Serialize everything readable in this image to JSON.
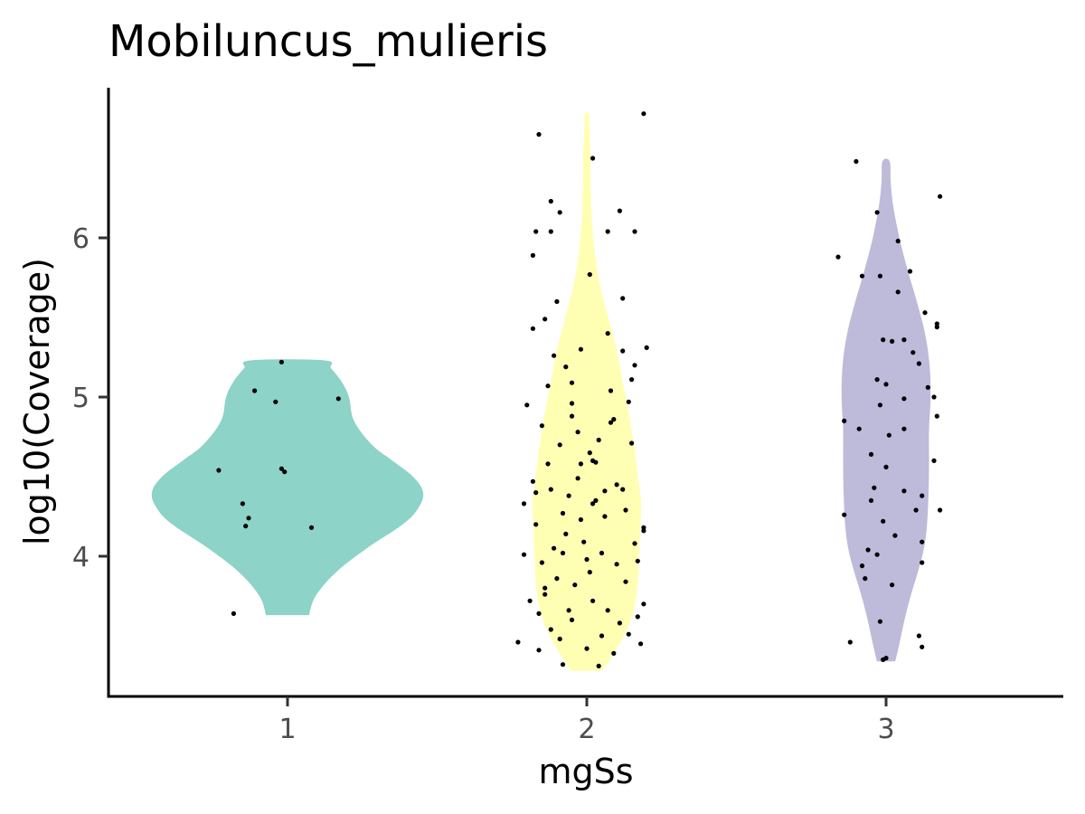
{
  "chart_data": {
    "type": "violin",
    "title": "Mobiluncus_mulieris",
    "xlabel": "mgSs",
    "ylabel": "log10(Coverage)",
    "categories": [
      "1",
      "2",
      "3"
    ],
    "yticks": [
      4,
      5,
      6
    ],
    "ylim": [
      3.1,
      6.9
    ],
    "grid": false,
    "legend": "none",
    "colors": [
      "#8DD3C7",
      "#FFFFB3",
      "#BEBADA"
    ],
    "groups": [
      {
        "category": "1",
        "range": [
          3.63,
          5.23
        ],
        "density": [
          [
            3.63,
            0.42
          ],
          [
            3.75,
            0.55
          ],
          [
            3.9,
            0.95
          ],
          [
            4.05,
            1.55
          ],
          [
            4.2,
            2.25
          ],
          [
            4.3,
            2.55
          ],
          [
            4.4,
            2.65
          ],
          [
            4.5,
            2.45
          ],
          [
            4.6,
            2.05
          ],
          [
            4.7,
            1.65
          ],
          [
            4.85,
            1.3
          ],
          [
            5.0,
            1.2
          ],
          [
            5.1,
            1.05
          ],
          [
            5.18,
            0.85
          ],
          [
            5.23,
            0.72
          ]
        ],
        "points": [
          [
            0.82,
            3.64
          ],
          [
            0.77,
            4.54
          ],
          [
            0.85,
            4.33
          ],
          [
            0.86,
            4.19
          ],
          [
            0.87,
            4.24
          ],
          [
            0.98,
            4.55
          ],
          [
            0.99,
            4.53
          ],
          [
            0.96,
            4.97
          ],
          [
            0.89,
            5.04
          ],
          [
            0.98,
            5.22
          ],
          [
            1.17,
            4.99
          ],
          [
            1.08,
            4.18
          ]
        ]
      },
      {
        "category": "2",
        "range": [
          3.28,
          6.78
        ],
        "density": [
          [
            3.28,
            0.3
          ],
          [
            3.4,
            0.55
          ],
          [
            3.55,
            0.8
          ],
          [
            3.7,
            0.94
          ],
          [
            3.85,
            1.0
          ],
          [
            4.0,
            1.02
          ],
          [
            4.2,
            1.05
          ],
          [
            4.35,
            1.06
          ],
          [
            4.5,
            1.0
          ],
          [
            4.7,
            0.92
          ],
          [
            4.9,
            0.82
          ],
          [
            5.1,
            0.7
          ],
          [
            5.3,
            0.58
          ],
          [
            5.5,
            0.42
          ],
          [
            5.7,
            0.26
          ],
          [
            5.9,
            0.16
          ],
          [
            6.1,
            0.1
          ],
          [
            6.3,
            0.08
          ],
          [
            6.5,
            0.07
          ],
          [
            6.7,
            0.05
          ],
          [
            6.78,
            0.04
          ]
        ],
        "points": [
          [
            1.77,
            3.46
          ],
          [
            1.84,
            3.41
          ],
          [
            1.92,
            3.32
          ],
          [
            1.88,
            3.54
          ],
          [
            1.84,
            3.64
          ],
          [
            1.86,
            3.76
          ],
          [
            1.9,
            3.86
          ],
          [
            1.95,
            3.6
          ],
          [
            2.02,
            3.72
          ],
          [
            2.04,
            3.31
          ],
          [
            2.09,
            3.39
          ],
          [
            2.14,
            3.51
          ],
          [
            2.17,
            3.62
          ],
          [
            2.19,
            3.7
          ],
          [
            2.13,
            3.84
          ],
          [
            2.1,
            3.95
          ],
          [
            2.16,
            4.08
          ],
          [
            2.19,
            4.18
          ],
          [
            2.13,
            4.29
          ],
          [
            2.06,
            4.41
          ],
          [
            2.02,
            4.33
          ],
          [
            1.98,
            4.23
          ],
          [
            1.93,
            4.14
          ],
          [
            1.89,
            4.05
          ],
          [
            1.83,
            4.2
          ],
          [
            1.79,
            4.33
          ],
          [
            1.82,
            4.47
          ],
          [
            1.87,
            4.58
          ],
          [
            1.91,
            4.7
          ],
          [
            1.85,
            4.82
          ],
          [
            1.8,
            4.95
          ],
          [
            1.87,
            5.07
          ],
          [
            1.93,
            5.19
          ],
          [
            1.98,
            5.3
          ],
          [
            2.07,
            5.4
          ],
          [
            2.12,
            5.29
          ],
          [
            2.16,
            5.2
          ],
          [
            2.2,
            5.31
          ],
          [
            2.14,
            4.97
          ],
          [
            2.08,
            4.84
          ],
          [
            2.04,
            4.73
          ],
          [
            2.02,
            4.6
          ],
          [
            1.97,
            4.49
          ],
          [
            1.94,
            4.38
          ],
          [
            1.99,
            4.09
          ],
          [
            2.05,
            4.02
          ],
          [
            2.01,
            3.9
          ],
          [
            1.96,
            3.82
          ],
          [
            1.91,
            3.48
          ],
          [
            2.0,
            3.42
          ],
          [
            2.07,
            3.66
          ],
          [
            2.11,
            3.58
          ],
          [
            2.18,
            3.45
          ],
          [
            1.81,
            3.72
          ],
          [
            1.85,
            3.96
          ],
          [
            1.92,
            4.27
          ],
          [
            2.03,
            4.59
          ],
          [
            2.09,
            4.86
          ],
          [
            2.15,
            5.11
          ],
          [
            1.82,
            5.43
          ],
          [
            1.86,
            5.49
          ],
          [
            1.9,
            5.6
          ],
          [
            2.01,
            5.77
          ],
          [
            2.12,
            5.62
          ],
          [
            1.82,
            5.89
          ],
          [
            1.83,
            6.04
          ],
          [
            1.88,
            6.04
          ],
          [
            2.07,
            6.04
          ],
          [
            2.16,
            6.04
          ],
          [
            1.91,
            6.16
          ],
          [
            2.11,
            6.17
          ],
          [
            1.88,
            6.23
          ],
          [
            2.02,
            6.5
          ],
          [
            1.84,
            6.65
          ],
          [
            2.19,
            6.78
          ],
          [
            1.95,
            4.88
          ],
          [
            1.97,
            4.78
          ],
          [
            2.01,
            4.65
          ],
          [
            1.88,
            4.42
          ],
          [
            1.92,
            4.02
          ],
          [
            2.06,
            4.25
          ],
          [
            2.1,
            4.45
          ],
          [
            2.15,
            4.71
          ],
          [
            2.08,
            5.04
          ],
          [
            1.95,
            5.09
          ],
          [
            1.89,
            5.26
          ],
          [
            1.98,
            4.58
          ],
          [
            2.03,
            4.35
          ],
          [
            1.86,
            3.8
          ],
          [
            1.94,
            3.66
          ],
          [
            2.05,
            3.5
          ],
          [
            1.79,
            4.01
          ],
          [
            2.17,
            3.97
          ],
          [
            2.19,
            4.16
          ],
          [
            1.83,
            4.4
          ],
          [
            1.95,
            4.96
          ],
          [
            2.12,
            4.42
          ],
          [
            2.0,
            3.98
          ]
        ]
      },
      {
        "category": "3",
        "range": [
          3.34,
          6.48
        ],
        "density": [
          [
            3.34,
            0.18
          ],
          [
            3.45,
            0.26
          ],
          [
            3.6,
            0.36
          ],
          [
            3.75,
            0.48
          ],
          [
            3.9,
            0.62
          ],
          [
            4.05,
            0.74
          ],
          [
            4.2,
            0.8
          ],
          [
            4.4,
            0.83
          ],
          [
            4.6,
            0.84
          ],
          [
            4.8,
            0.84
          ],
          [
            5.0,
            0.87
          ],
          [
            5.2,
            0.85
          ],
          [
            5.4,
            0.76
          ],
          [
            5.6,
            0.6
          ],
          [
            5.8,
            0.42
          ],
          [
            6.0,
            0.26
          ],
          [
            6.2,
            0.14
          ],
          [
            6.35,
            0.09
          ],
          [
            6.48,
            0.07
          ]
        ],
        "points": [
          [
            2.88,
            3.46
          ],
          [
            2.98,
            3.59
          ],
          [
            2.99,
            3.35
          ],
          [
            3.0,
            3.36
          ],
          [
            3.12,
            3.43
          ],
          [
            3.11,
            3.5
          ],
          [
            3.02,
            3.82
          ],
          [
            3.12,
            4.09
          ],
          [
            2.92,
            3.94
          ],
          [
            2.94,
            4.04
          ],
          [
            3.12,
            4.38
          ],
          [
            2.96,
            4.43
          ],
          [
            2.95,
            4.35
          ],
          [
            3.16,
            4.6
          ],
          [
            3.01,
            4.76
          ],
          [
            3.06,
            4.8
          ],
          [
            2.91,
            4.8
          ],
          [
            2.86,
            4.85
          ],
          [
            2.95,
            4.64
          ],
          [
            3.17,
            4.88
          ],
          [
            3.16,
            5.0
          ],
          [
            3.14,
            5.06
          ],
          [
            3.11,
            5.21
          ],
          [
            3.17,
            5.44
          ],
          [
            3.17,
            5.46
          ],
          [
            3.06,
            5.36
          ],
          [
            3.02,
            5.35
          ],
          [
            3.04,
            5.66
          ],
          [
            2.98,
            5.76
          ],
          [
            3.08,
            5.79
          ],
          [
            2.92,
            5.76
          ],
          [
            3.04,
            5.98
          ],
          [
            2.97,
            6.16
          ],
          [
            2.9,
            6.48
          ],
          [
            3.18,
            6.26
          ],
          [
            2.84,
            5.88
          ],
          [
            2.99,
            5.36
          ],
          [
            3.06,
            4.41
          ],
          [
            3.1,
            4.29
          ],
          [
            3.18,
            4.29
          ],
          [
            2.86,
            4.26
          ],
          [
            2.99,
            4.22
          ],
          [
            3.03,
            4.13
          ],
          [
            2.97,
            4.01
          ],
          [
            2.93,
            3.86
          ],
          [
            3.12,
            3.96
          ],
          [
            3.06,
            4.99
          ],
          [
            3.0,
            5.08
          ],
          [
            2.97,
            5.11
          ],
          [
            2.98,
            4.95
          ],
          [
            3.09,
            5.28
          ],
          [
            3.13,
            5.53
          ],
          [
            3.0,
            4.56
          ]
        ]
      }
    ]
  }
}
